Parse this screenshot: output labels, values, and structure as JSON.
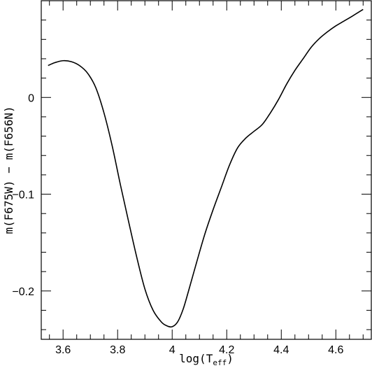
{
  "chart_data": {
    "type": "line",
    "xlabel_base": "log(T",
    "xlabel_sub": "eff",
    "xlabel_close": ")",
    "ylabel": "m(F675W) − m(F656N)",
    "xlim": [
      3.52,
      4.73
    ],
    "ylim": [
      -0.25,
      0.1
    ],
    "x_major_ticks": [
      3.6,
      3.8,
      4.0,
      4.2,
      4.4,
      4.6
    ],
    "x_tick_labels": [
      "3.6",
      "3.8",
      "4",
      "4.2",
      "4.4",
      "4.6"
    ],
    "x_minor_step": 0.05,
    "y_major_ticks": [
      0,
      -0.1,
      -0.2
    ],
    "y_tick_labels": [
      "0",
      "−0.1",
      "−0.2"
    ],
    "y_minor_step": 0.02,
    "series": [
      {
        "x": [
          3.545,
          3.57,
          3.6,
          3.63,
          3.66,
          3.69,
          3.72,
          3.75,
          3.78,
          3.81,
          3.84,
          3.87,
          3.9,
          3.93,
          3.96,
          3.98,
          4.0,
          4.02,
          4.04,
          4.06,
          4.09,
          4.12,
          4.15,
          4.18,
          4.21,
          4.24,
          4.27,
          4.3,
          4.33,
          4.36,
          4.39,
          4.42,
          4.45,
          4.48,
          4.51,
          4.54,
          4.57,
          4.6,
          4.63,
          4.66,
          4.7
        ],
        "y": [
          0.033,
          0.036,
          0.038,
          0.037,
          0.033,
          0.025,
          0.01,
          -0.016,
          -0.05,
          -0.09,
          -0.128,
          -0.165,
          -0.198,
          -0.22,
          -0.232,
          -0.236,
          -0.237,
          -0.232,
          -0.219,
          -0.2,
          -0.17,
          -0.141,
          -0.116,
          -0.093,
          -0.07,
          -0.052,
          -0.042,
          -0.035,
          -0.028,
          -0.016,
          -0.002,
          0.014,
          0.028,
          0.04,
          0.052,
          0.061,
          0.068,
          0.074,
          0.079,
          0.084,
          0.091
        ]
      }
    ]
  }
}
